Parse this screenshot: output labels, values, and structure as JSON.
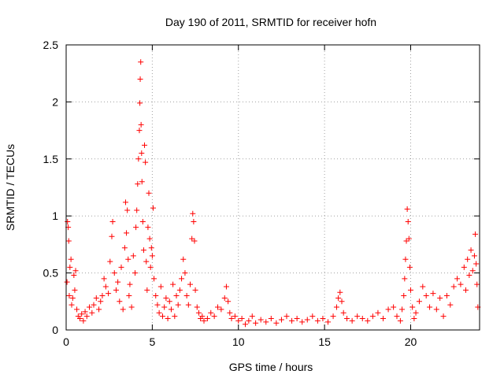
{
  "chart_data": {
    "type": "scatter",
    "title": "Day 190 of 2011, SRMTID for receiver hofn",
    "xlabel": "GPS time / hours",
    "ylabel": "SRMTID / TECUs",
    "xlim": [
      0,
      24
    ],
    "ylim": [
      0,
      2.5
    ],
    "grid": true,
    "marker": "+",
    "color": "#ff0000",
    "x_ticks": [
      0,
      5,
      10,
      15,
      20
    ],
    "x_tick_labels": [
      "0",
      "5",
      "10",
      "15",
      "20"
    ],
    "y_ticks": [
      0,
      0.5,
      1,
      1.5,
      2,
      2.5
    ],
    "y_tick_labels": [
      "0",
      "0.5",
      "1",
      "1.5",
      "2",
      "2.5"
    ],
    "series": [
      {
        "name": "SRMTID",
        "points": [
          [
            0.05,
            0.42
          ],
          [
            0.08,
            0.95
          ],
          [
            0.12,
            0.9
          ],
          [
            0.15,
            0.78
          ],
          [
            0.18,
            0.3
          ],
          [
            0.22,
            0.55
          ],
          [
            0.28,
            0.62
          ],
          [
            0.32,
            0.22
          ],
          [
            0.38,
            0.28
          ],
          [
            0.45,
            0.48
          ],
          [
            0.5,
            0.35
          ],
          [
            0.55,
            0.52
          ],
          [
            0.62,
            0.18
          ],
          [
            0.7,
            0.12
          ],
          [
            0.8,
            0.1
          ],
          [
            0.9,
            0.14
          ],
          [
            1.0,
            0.08
          ],
          [
            1.1,
            0.16
          ],
          [
            1.2,
            0.12
          ],
          [
            1.35,
            0.2
          ],
          [
            1.5,
            0.15
          ],
          [
            1.6,
            0.22
          ],
          [
            1.75,
            0.28
          ],
          [
            1.9,
            0.18
          ],
          [
            2.0,
            0.25
          ],
          [
            2.1,
            0.3
          ],
          [
            2.2,
            0.45
          ],
          [
            2.3,
            0.38
          ],
          [
            2.45,
            0.32
          ],
          [
            2.55,
            0.6
          ],
          [
            2.65,
            0.82
          ],
          [
            2.7,
            0.95
          ],
          [
            2.8,
            0.5
          ],
          [
            2.9,
            0.35
          ],
          [
            3.0,
            0.42
          ],
          [
            3.1,
            0.25
          ],
          [
            3.2,
            0.55
          ],
          [
            3.3,
            0.18
          ],
          [
            3.4,
            0.72
          ],
          [
            3.45,
            1.12
          ],
          [
            3.5,
            0.85
          ],
          [
            3.55,
            1.05
          ],
          [
            3.6,
            0.62
          ],
          [
            3.65,
            0.3
          ],
          [
            3.7,
            0.4
          ],
          [
            3.8,
            0.2
          ],
          [
            3.9,
            0.65
          ],
          [
            4.0,
            0.5
          ],
          [
            4.05,
            0.9
          ],
          [
            4.1,
            1.05
          ],
          [
            4.15,
            1.28
          ],
          [
            4.2,
            1.5
          ],
          [
            4.25,
            1.75
          ],
          [
            4.28,
            1.99
          ],
          [
            4.3,
            2.2
          ],
          [
            4.33,
            2.35
          ],
          [
            4.35,
            1.8
          ],
          [
            4.38,
            1.55
          ],
          [
            4.4,
            1.3
          ],
          [
            4.45,
            0.95
          ],
          [
            4.5,
            0.7
          ],
          [
            4.55,
            1.62
          ],
          [
            4.6,
            1.47
          ],
          [
            4.65,
            0.6
          ],
          [
            4.7,
            0.35
          ],
          [
            4.75,
            0.9
          ],
          [
            4.8,
            1.2
          ],
          [
            4.85,
            0.8
          ],
          [
            4.9,
            0.55
          ],
          [
            4.95,
            0.72
          ],
          [
            5.0,
            0.65
          ],
          [
            5.05,
            1.07
          ],
          [
            5.1,
            0.45
          ],
          [
            5.2,
            0.3
          ],
          [
            5.3,
            0.22
          ],
          [
            5.4,
            0.15
          ],
          [
            5.5,
            0.38
          ],
          [
            5.6,
            0.12
          ],
          [
            5.7,
            0.2
          ],
          [
            5.8,
            0.28
          ],
          [
            5.9,
            0.1
          ],
          [
            6.0,
            0.25
          ],
          [
            6.1,
            0.18
          ],
          [
            6.2,
            0.4
          ],
          [
            6.3,
            0.12
          ],
          [
            6.4,
            0.3
          ],
          [
            6.5,
            0.22
          ],
          [
            6.6,
            0.35
          ],
          [
            6.7,
            0.45
          ],
          [
            6.8,
            0.62
          ],
          [
            6.9,
            0.5
          ],
          [
            7.0,
            0.3
          ],
          [
            7.1,
            0.22
          ],
          [
            7.2,
            0.4
          ],
          [
            7.3,
            0.8
          ],
          [
            7.35,
            1.02
          ],
          [
            7.4,
            0.95
          ],
          [
            7.45,
            0.78
          ],
          [
            7.5,
            0.35
          ],
          [
            7.6,
            0.2
          ],
          [
            7.7,
            0.15
          ],
          [
            7.8,
            0.1
          ],
          [
            7.9,
            0.12
          ],
          [
            8.0,
            0.08
          ],
          [
            8.2,
            0.1
          ],
          [
            8.4,
            0.15
          ],
          [
            8.6,
            0.12
          ],
          [
            8.8,
            0.2
          ],
          [
            9.0,
            0.18
          ],
          [
            9.2,
            0.28
          ],
          [
            9.3,
            0.38
          ],
          [
            9.4,
            0.25
          ],
          [
            9.5,
            0.15
          ],
          [
            9.6,
            0.1
          ],
          [
            9.8,
            0.12
          ],
          [
            10.0,
            0.08
          ],
          [
            10.2,
            0.1
          ],
          [
            10.4,
            0.05
          ],
          [
            10.6,
            0.08
          ],
          [
            10.8,
            0.12
          ],
          [
            11.0,
            0.06
          ],
          [
            11.3,
            0.09
          ],
          [
            11.6,
            0.07
          ],
          [
            11.9,
            0.1
          ],
          [
            12.2,
            0.06
          ],
          [
            12.5,
            0.09
          ],
          [
            12.8,
            0.12
          ],
          [
            13.1,
            0.08
          ],
          [
            13.4,
            0.1
          ],
          [
            13.7,
            0.07
          ],
          [
            14.0,
            0.09
          ],
          [
            14.3,
            0.12
          ],
          [
            14.6,
            0.08
          ],
          [
            14.9,
            0.1
          ],
          [
            15.2,
            0.07
          ],
          [
            15.5,
            0.12
          ],
          [
            15.7,
            0.2
          ],
          [
            15.8,
            0.28
          ],
          [
            15.9,
            0.33
          ],
          [
            16.0,
            0.25
          ],
          [
            16.1,
            0.15
          ],
          [
            16.3,
            0.1
          ],
          [
            16.6,
            0.08
          ],
          [
            16.9,
            0.12
          ],
          [
            17.2,
            0.1
          ],
          [
            17.5,
            0.08
          ],
          [
            17.8,
            0.12
          ],
          [
            18.1,
            0.15
          ],
          [
            18.4,
            0.1
          ],
          [
            18.7,
            0.18
          ],
          [
            19.0,
            0.2
          ],
          [
            19.2,
            0.12
          ],
          [
            19.4,
            0.08
          ],
          [
            19.5,
            0.18
          ],
          [
            19.6,
            0.3
          ],
          [
            19.65,
            0.45
          ],
          [
            19.7,
            0.62
          ],
          [
            19.75,
            0.78
          ],
          [
            19.8,
            1.06
          ],
          [
            19.85,
            0.95
          ],
          [
            19.9,
            0.8
          ],
          [
            19.95,
            0.55
          ],
          [
            20.0,
            0.35
          ],
          [
            20.1,
            0.2
          ],
          [
            20.2,
            0.1
          ],
          [
            20.3,
            0.15
          ],
          [
            20.5,
            0.25
          ],
          [
            20.7,
            0.38
          ],
          [
            20.9,
            0.3
          ],
          [
            21.1,
            0.2
          ],
          [
            21.3,
            0.32
          ],
          [
            21.5,
            0.18
          ],
          [
            21.7,
            0.28
          ],
          [
            21.9,
            0.12
          ],
          [
            22.1,
            0.3
          ],
          [
            22.3,
            0.22
          ],
          [
            22.5,
            0.38
          ],
          [
            22.7,
            0.45
          ],
          [
            22.9,
            0.4
          ],
          [
            23.1,
            0.55
          ],
          [
            23.2,
            0.35
          ],
          [
            23.3,
            0.62
          ],
          [
            23.4,
            0.48
          ],
          [
            23.5,
            0.7
          ],
          [
            23.6,
            0.52
          ],
          [
            23.7,
            0.65
          ],
          [
            23.75,
            0.84
          ],
          [
            23.8,
            0.58
          ],
          [
            23.85,
            0.4
          ],
          [
            23.9,
            0.2
          ]
        ]
      }
    ]
  }
}
